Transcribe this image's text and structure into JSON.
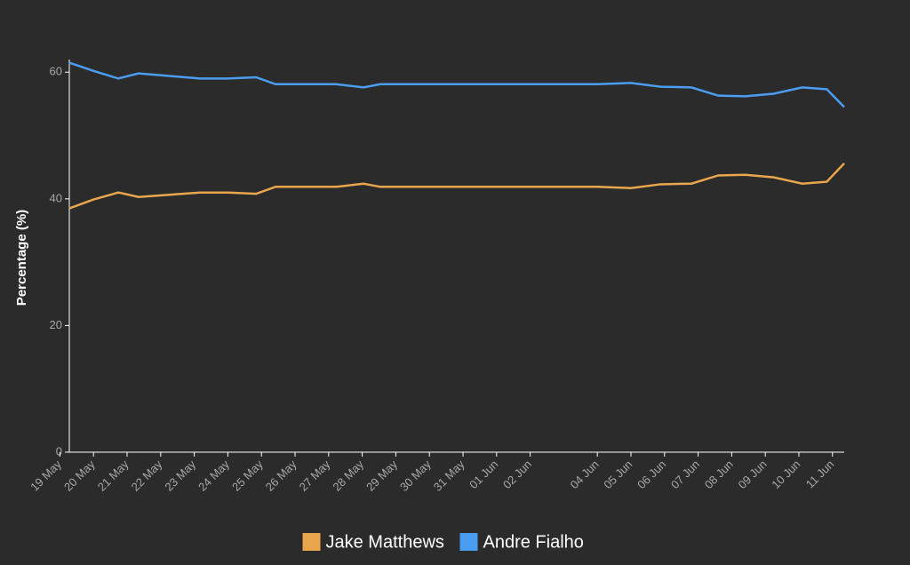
{
  "chart_data": {
    "type": "line",
    "y_label": "Percentage (%)",
    "x": [
      0.28,
      1.0,
      1.74,
      2.34,
      4.17,
      5.0,
      5.84,
      6.42,
      8.22,
      9.04,
      9.54,
      16.0,
      17.0,
      17.88,
      18.8,
      19.6,
      20.4,
      21.25,
      22.1,
      22.83,
      23.35
    ],
    "series": [
      {
        "name": "Jake Matthews",
        "color": "#eaa64d",
        "values": [
          38.5,
          39.9,
          41.0,
          40.3,
          41.0,
          41.0,
          40.8,
          41.9,
          41.9,
          42.4,
          41.9,
          41.9,
          41.7,
          42.3,
          42.4,
          43.7,
          43.8,
          43.4,
          42.4,
          42.7,
          45.6
        ]
      },
      {
        "name": "Andre Fialho",
        "color": "#4a9df0",
        "values": [
          61.5,
          60.2,
          59.0,
          59.8,
          59.0,
          59.0,
          59.2,
          58.1,
          58.1,
          57.6,
          58.1,
          58.1,
          58.3,
          57.7,
          57.6,
          56.3,
          56.2,
          56.6,
          57.6,
          57.3,
          54.5
        ]
      }
    ],
    "xlim": [
      0.28,
      23.35
    ],
    "xticks": [
      {
        "value": 0,
        "label": "19 May"
      },
      {
        "value": 1,
        "label": "20 May"
      },
      {
        "value": 2,
        "label": "21 May"
      },
      {
        "value": 3,
        "label": "22 May"
      },
      {
        "value": 4,
        "label": "23 May"
      },
      {
        "value": 5,
        "label": "24 May"
      },
      {
        "value": 6,
        "label": "25 May"
      },
      {
        "value": 7,
        "label": "26 May"
      },
      {
        "value": 8,
        "label": "27 May"
      },
      {
        "value": 9,
        "label": "28 May"
      },
      {
        "value": 10,
        "label": "29 May"
      },
      {
        "value": 11,
        "label": "30 May"
      },
      {
        "value": 12,
        "label": "31 May"
      },
      {
        "value": 13,
        "label": "01 Jun"
      },
      {
        "value": 14,
        "label": "02 Jun"
      },
      {
        "value": 16,
        "label": "04 Jun"
      },
      {
        "value": 17,
        "label": "05 Jun"
      },
      {
        "value": 18,
        "label": "06 Jun"
      },
      {
        "value": 19,
        "label": "07 Jun"
      },
      {
        "value": 20,
        "label": "08 Jun"
      },
      {
        "value": 21,
        "label": "09 Jun"
      },
      {
        "value": 22,
        "label": "10 Jun"
      },
      {
        "value": 23,
        "label": "11 Jun"
      }
    ],
    "ylim": [
      0,
      62
    ],
    "yticks": [
      0,
      20,
      40,
      60
    ],
    "legend": "bottom"
  }
}
